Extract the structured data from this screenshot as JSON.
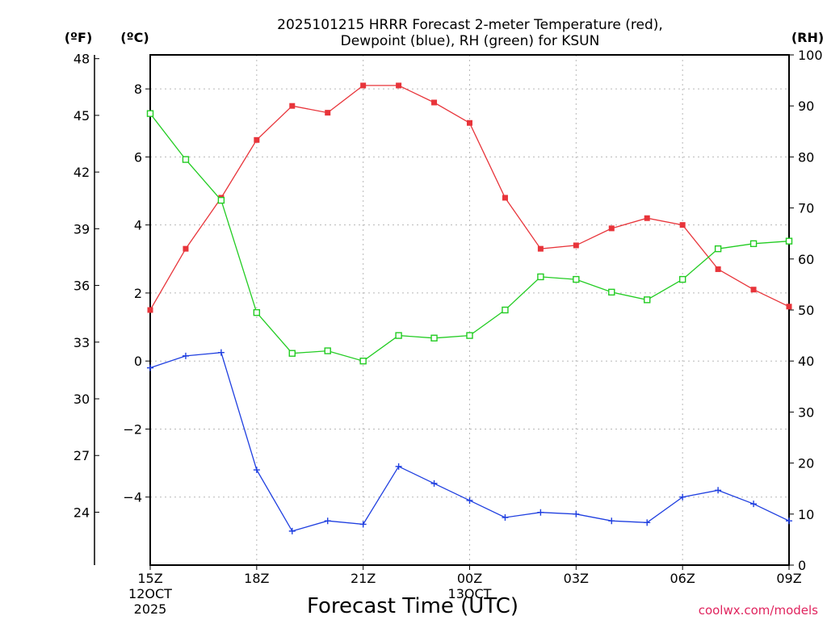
{
  "chart_data": {
    "type": "line",
    "title_line1": "2025101215 HRRR Forecast 2-meter Temperature (red),",
    "title_line2": "Dewpoint (blue), RH (green) for KSUN",
    "xlabel": "Forecast Time (UTC)",
    "credit": "coolwx.com/models",
    "unit_f": "(ºF)",
    "unit_c": "(ºC)",
    "unit_rh": "(RH)",
    "hours": [
      15,
      16,
      17,
      18,
      19,
      20,
      21,
      22,
      23,
      24,
      25,
      26,
      27,
      28,
      29,
      30,
      31,
      32,
      33
    ],
    "x_ticks": [
      {
        "hour": 15,
        "label": "15Z",
        "sub1": "12OCT",
        "sub2": "2025"
      },
      {
        "hour": 18,
        "label": "18Z",
        "sub1": "",
        "sub2": ""
      },
      {
        "hour": 21,
        "label": "21Z",
        "sub1": "",
        "sub2": ""
      },
      {
        "hour": 24,
        "label": "00Z",
        "sub1": "13OCT",
        "sub2": ""
      },
      {
        "hour": 27,
        "label": "03Z",
        "sub1": "",
        "sub2": ""
      },
      {
        "hour": 30,
        "label": "06Z",
        "sub1": "",
        "sub2": ""
      },
      {
        "hour": 33,
        "label": "09Z",
        "sub1": "",
        "sub2": ""
      }
    ],
    "xlim": [
      15,
      33
    ],
    "ylim_c": [
      -6,
      9
    ],
    "ylim_rh": [
      0,
      100
    ],
    "ylim_f": [
      21.2,
      48.2
    ],
    "ticks_c": [
      8,
      6,
      4,
      2,
      0,
      -2,
      -4
    ],
    "ticks_c_labels": [
      "8",
      "6",
      "4",
      "2",
      "0",
      "−2",
      "−4"
    ],
    "ticks_f": [
      48,
      45,
      42,
      39,
      36,
      33,
      30,
      27,
      24
    ],
    "ticks_rh": [
      100,
      90,
      80,
      70,
      60,
      50,
      40,
      30,
      20,
      10,
      0
    ],
    "series": [
      {
        "name": "2-meter Temperature",
        "color": "#e8343a",
        "marker": "filled-square",
        "values": [
          1.5,
          3.3,
          4.8,
          6.5,
          7.5,
          7.3,
          8.1,
          8.1,
          7.6,
          7.0,
          4.8,
          3.3,
          3.4,
          3.9,
          4.2,
          4.0,
          2.7,
          2.1,
          1.6
        ]
      },
      {
        "name": "Dewpoint",
        "color": "#1f3fe0",
        "marker": "plus",
        "values": [
          -0.2,
          0.15,
          0.25,
          -3.2,
          -5.0,
          -4.7,
          -4.8,
          -3.1,
          -3.6,
          -4.1,
          -4.6,
          -4.45,
          -4.5,
          -4.7,
          -4.75,
          -4.0,
          -3.8,
          -4.2,
          -4.7
        ]
      },
      {
        "name": "RH",
        "color": "#22cc22",
        "marker": "open-square",
        "values": [
          88.5,
          79.5,
          71.5,
          49.5,
          41.5,
          42,
          40,
          45,
          44.5,
          45,
          50,
          56.5,
          56,
          53.5,
          52,
          56,
          62,
          63,
          63.5
        ]
      }
    ]
  }
}
